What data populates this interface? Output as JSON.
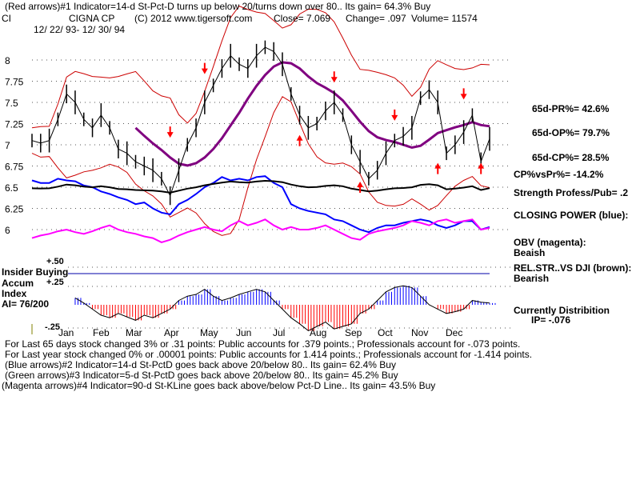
{
  "header": {
    "line1": "(Red arrows)#1 Indicator=14-d St-Pct-D turns up below 20/turns down over 80.. Its gain= 64.3% Buy",
    "ticker": "CI",
    "company": "CIGNA CP",
    "copyright": "(C) 2012 www.tigersoft.com",
    "close": "Close=  7.069",
    "change": "Change= .097",
    "volume": "Volume= 11574",
    "daterange": "12/ 22/ 93- 12/ 30/ 94"
  },
  "side": {
    "pr": "65d-PR%= 42.6%",
    "op": "65d-OP%= 79.7%",
    "cp": "65d-CP%= 28.5%",
    "cpvspr": "CP%vsPr%= -14.2%",
    "strength": "Strength Profess/Pub= .2",
    "closing_power": "CLOSING POWER (blue):",
    "obv": "OBV (magenta):",
    "obv_val": "Beaish",
    "relstr": "REL.STR..VS DJI (brown):",
    "relstr_val": "Bearish",
    "distribution": "Currently Distribition",
    "ip": "IP= -.076"
  },
  "left": {
    "insider": "Insider Buying",
    "accum": "Accum",
    "index": "Index",
    "ai": "AI= 76/200",
    "p50": "+.50",
    "p25": "+.25",
    "m25": "-.25"
  },
  "footer": {
    "l1": "For Last 65 days stock changed  3% or  .31 points:  Public accounts for  .379 points.;  Professionals account for -.073 points.",
    "l2": "For Last year stock changed  0% or  .00001 points:  Public accounts for  1.414 points.;  Professionals account for -1.414 points.",
    "l3": "(Blue arrows)#2 Indicator=14-d St-PctD goes back above 20/below 80.. Its gain= 62.4% Buy",
    "l4": "(Green arrows)#3 Indicator=5-d St-PctD goes back above 20/below 80.. Its gain= 45.2% Buy",
    "l5": "(Magenta arrows)#4 Indicator=90-d St-KLine goes back above/below Pct-D Line.. Its gain= 43.5% Buy"
  },
  "chart_data": {
    "type": "line",
    "title": "CIGNA CP",
    "xlabel": "",
    "ylabel": "",
    "ylim": [
      5.85,
      8.2
    ],
    "yticks": [
      "8",
      "7.75",
      "7.5",
      "7.25",
      "7",
      "6.75",
      "6.5",
      "6.25",
      "6"
    ],
    "months": [
      "Jan",
      "Feb",
      "Mar",
      "Apr",
      "May",
      "Jun",
      "Jul",
      "Aug",
      "Sep",
      "Oct",
      "Nov",
      "Dec"
    ],
    "close": [
      7.05,
      7.02,
      7.05,
      7.3,
      7.6,
      7.5,
      7.3,
      7.2,
      7.35,
      7.2,
      6.95,
      6.9,
      6.8,
      6.75,
      6.7,
      6.6,
      6.4,
      6.7,
      7.0,
      7.2,
      7.5,
      7.7,
      7.9,
      8.05,
      7.95,
      7.9,
      8.05,
      8.15,
      8.1,
      7.95,
      7.6,
      7.35,
      7.2,
      7.25,
      7.4,
      7.5,
      7.35,
      7.0,
      6.8,
      6.6,
      6.7,
      6.9,
      7.05,
      7.1,
      7.2,
      7.55,
      7.65,
      7.5,
      6.9,
      7.0,
      7.15,
      7.35,
      6.8,
      7.07
    ],
    "closing_power": [
      6.58,
      6.55,
      6.55,
      6.6,
      6.58,
      6.57,
      6.52,
      6.5,
      6.45,
      6.42,
      6.38,
      6.35,
      6.3,
      6.32,
      6.25,
      6.2,
      6.18,
      6.3,
      6.35,
      6.42,
      6.5,
      6.55,
      6.62,
      6.58,
      6.6,
      6.58,
      6.62,
      6.63,
      6.55,
      6.5,
      6.3,
      6.25,
      6.22,
      6.2,
      6.18,
      6.12,
      6.1,
      6.05,
      6.0,
      5.97,
      6.02,
      6.05,
      6.05,
      6.08,
      6.1,
      6.12,
      6.1,
      6.05,
      6.02,
      6.05,
      6.1,
      6.1,
      6.0,
      6.03
    ],
    "obv": [
      5.9,
      5.93,
      5.95,
      5.98,
      6.0,
      5.97,
      5.95,
      5.98,
      6.02,
      6.05,
      6.0,
      5.97,
      5.95,
      5.92,
      5.9,
      5.85,
      5.88,
      5.93,
      5.97,
      6.0,
      6.03,
      6.0,
      5.98,
      6.05,
      6.1,
      6.05,
      6.08,
      6.12,
      6.05,
      6.0,
      6.03,
      6.0,
      6.0,
      6.02,
      6.05,
      6.0,
      5.95,
      5.9,
      5.88,
      5.95,
      5.98,
      6.0,
      6.02,
      6.05,
      6.1,
      6.08,
      6.05,
      6.1,
      6.12,
      6.08,
      6.1,
      6.12,
      6.0,
      6.02
    ],
    "accum_index": [
      0.25,
      0.15,
      0.12,
      0.1,
      0.12,
      0.08,
      0.02,
      -0.05,
      -0.12,
      -0.15,
      -0.1,
      -0.14,
      -0.18,
      -0.12,
      -0.15,
      -0.1,
      -0.05,
      0.05,
      0.1,
      0.12,
      0.18,
      0.1,
      0.05,
      0.08,
      0.12,
      0.15,
      0.18,
      0.15,
      0.05,
      -0.05,
      -0.15,
      -0.22,
      -0.3,
      -0.25,
      -0.2,
      -0.28,
      -0.25,
      -0.22,
      -0.1,
      -0.05,
      0.05,
      0.15,
      0.2,
      0.22,
      0.2,
      0.1,
      0.0,
      -0.05,
      -0.1,
      -0.08,
      -0.05,
      0.05,
      0.03,
      0.02
    ],
    "arrows": [
      {
        "i": 20,
        "dir": "down",
        "y": 7.9
      },
      {
        "i": 16,
        "dir": "down",
        "y": 7.15
      },
      {
        "i": 35,
        "dir": "down",
        "y": 7.8
      },
      {
        "i": 42,
        "dir": "down",
        "y": 7.35
      },
      {
        "i": 50,
        "dir": "down",
        "y": 7.6
      },
      {
        "i": 31,
        "dir": "up",
        "y": 7.05
      },
      {
        "i": 38,
        "dir": "up",
        "y": 6.5
      },
      {
        "i": 47,
        "dir": "up",
        "y": 6.72
      },
      {
        "i": 52,
        "dir": "up",
        "y": 6.72
      }
    ],
    "colors": {
      "price": "#000000",
      "bands": "#cc0000",
      "ma": "#800080",
      "cp": "#0000ff",
      "obv": "#ff00ff",
      "pos": "#0000ff",
      "neg": "#ff0000"
    }
  }
}
